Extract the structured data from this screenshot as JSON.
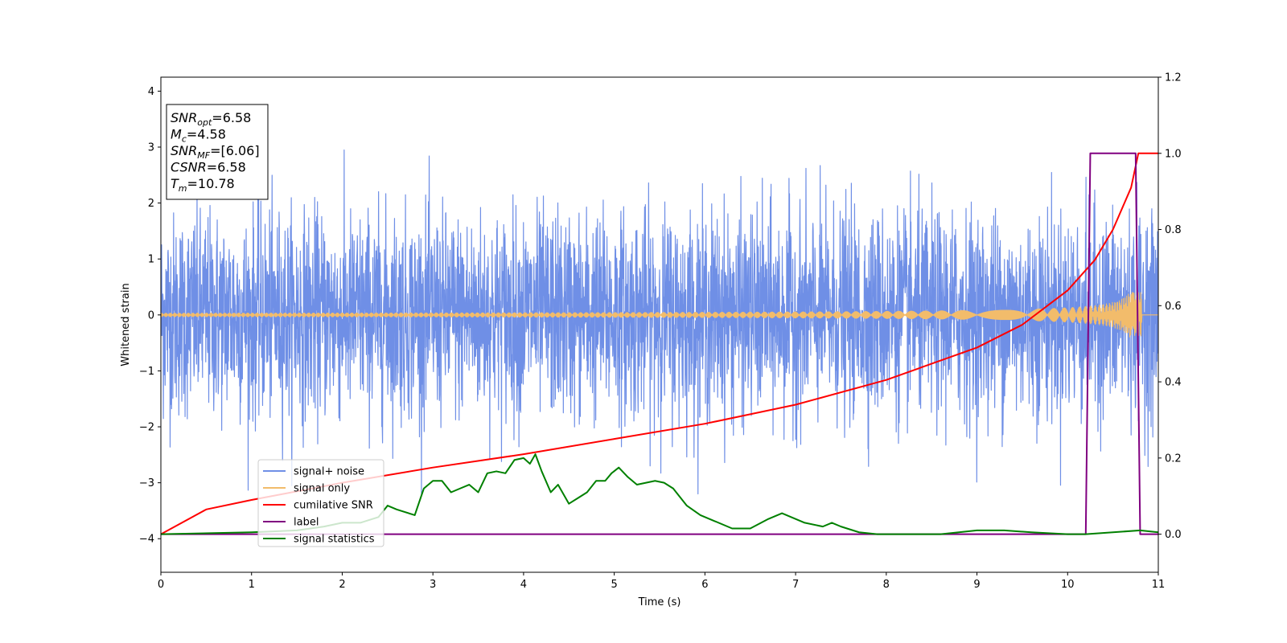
{
  "chart_data": {
    "type": "line",
    "xlabel": "Time (s)",
    "ylabel_left": "Whitened strain",
    "ylabel_right": "",
    "xlim": [
      0,
      11
    ],
    "ylim_left": [
      -4.6,
      4.25
    ],
    "ylim_right": [
      -0.1,
      1.2
    ],
    "x_ticks": [
      0,
      1,
      2,
      3,
      4,
      5,
      6,
      7,
      8,
      9,
      10,
      11
    ],
    "y_ticks_left": [
      -4,
      -3,
      -2,
      -1,
      0,
      1,
      2,
      3,
      4
    ],
    "y_ticks_right": [
      0.0,
      0.2,
      0.4,
      0.6,
      0.8,
      1.0,
      1.2
    ],
    "legend_position": "lower-left",
    "info_box": [
      {
        "base": "SNR",
        "sub": "opt",
        "rest": "=6.58"
      },
      {
        "base": "M",
        "sub": "c",
        "rest": "=4.58"
      },
      {
        "base": "SNR",
        "sub": "MF",
        "rest": "=[6.06]"
      },
      {
        "base": "CSNR",
        "sub": "",
        "rest": "=6.58"
      },
      {
        "base": "T",
        "sub": "m",
        "rest": "=10.78"
      }
    ],
    "series": [
      {
        "name": "signal+ noise",
        "color": "#6f8fe6",
        "axis": "left",
        "kind": "noise",
        "std": 0.9,
        "range": [
          -3.2,
          3.85
        ]
      },
      {
        "name": "signal only",
        "color": "#f2bc6b",
        "axis": "left",
        "kind": "chirp",
        "merger_time": 10.78,
        "peak_amplitude": 0.4,
        "end_time": 10.82
      },
      {
        "name": "cumilative SNR",
        "color": "#ff0000",
        "axis": "right",
        "x": [
          0,
          0.5,
          1,
          2,
          3,
          4,
          5,
          6,
          7,
          8,
          9,
          9.5,
          10,
          10.3,
          10.5,
          10.7,
          10.78,
          10.8,
          11
        ],
        "y": [
          0.0,
          0.065,
          0.09,
          0.135,
          0.175,
          0.21,
          0.25,
          0.29,
          0.34,
          0.405,
          0.49,
          0.55,
          0.64,
          0.72,
          0.8,
          0.91,
          1.0,
          1.0,
          1.0
        ]
      },
      {
        "name": "label",
        "color": "#800080",
        "axis": "right",
        "x": [
          0,
          10.2,
          10.25,
          10.75,
          10.8,
          11
        ],
        "y": [
          0,
          0,
          1,
          1,
          0,
          0
        ]
      },
      {
        "name": "signal statistics",
        "color": "#008000",
        "axis": "right",
        "x": [
          0,
          1,
          1.5,
          1.8,
          2.0,
          2.2,
          2.4,
          2.5,
          2.6,
          2.8,
          2.9,
          3.0,
          3.1,
          3.2,
          3.3,
          3.4,
          3.5,
          3.6,
          3.7,
          3.8,
          3.9,
          4.0,
          4.07,
          4.13,
          4.2,
          4.3,
          4.38,
          4.5,
          4.6,
          4.7,
          4.8,
          4.9,
          4.97,
          5.05,
          5.15,
          5.25,
          5.35,
          5.45,
          5.55,
          5.65,
          5.8,
          5.95,
          6.1,
          6.3,
          6.5,
          6.7,
          6.85,
          6.95,
          7.1,
          7.3,
          7.4,
          7.5,
          7.7,
          7.9,
          8.2,
          8.6,
          9.0,
          9.3,
          9.6,
          10.0,
          10.2,
          10.5,
          10.8,
          11
        ],
        "y": [
          0.0,
          0.005,
          0.01,
          0.02,
          0.03,
          0.03,
          0.045,
          0.075,
          0.065,
          0.05,
          0.12,
          0.14,
          0.14,
          0.11,
          0.12,
          0.13,
          0.11,
          0.16,
          0.165,
          0.16,
          0.195,
          0.2,
          0.185,
          0.21,
          0.165,
          0.11,
          0.13,
          0.08,
          0.095,
          0.11,
          0.14,
          0.14,
          0.16,
          0.175,
          0.15,
          0.13,
          0.135,
          0.14,
          0.135,
          0.12,
          0.075,
          0.05,
          0.035,
          0.015,
          0.015,
          0.04,
          0.055,
          0.045,
          0.03,
          0.02,
          0.03,
          0.02,
          0.005,
          0.0,
          0.0,
          0.0,
          0.01,
          0.01,
          0.005,
          0.0,
          0.0,
          0.005,
          0.01,
          0.005
        ]
      }
    ]
  }
}
